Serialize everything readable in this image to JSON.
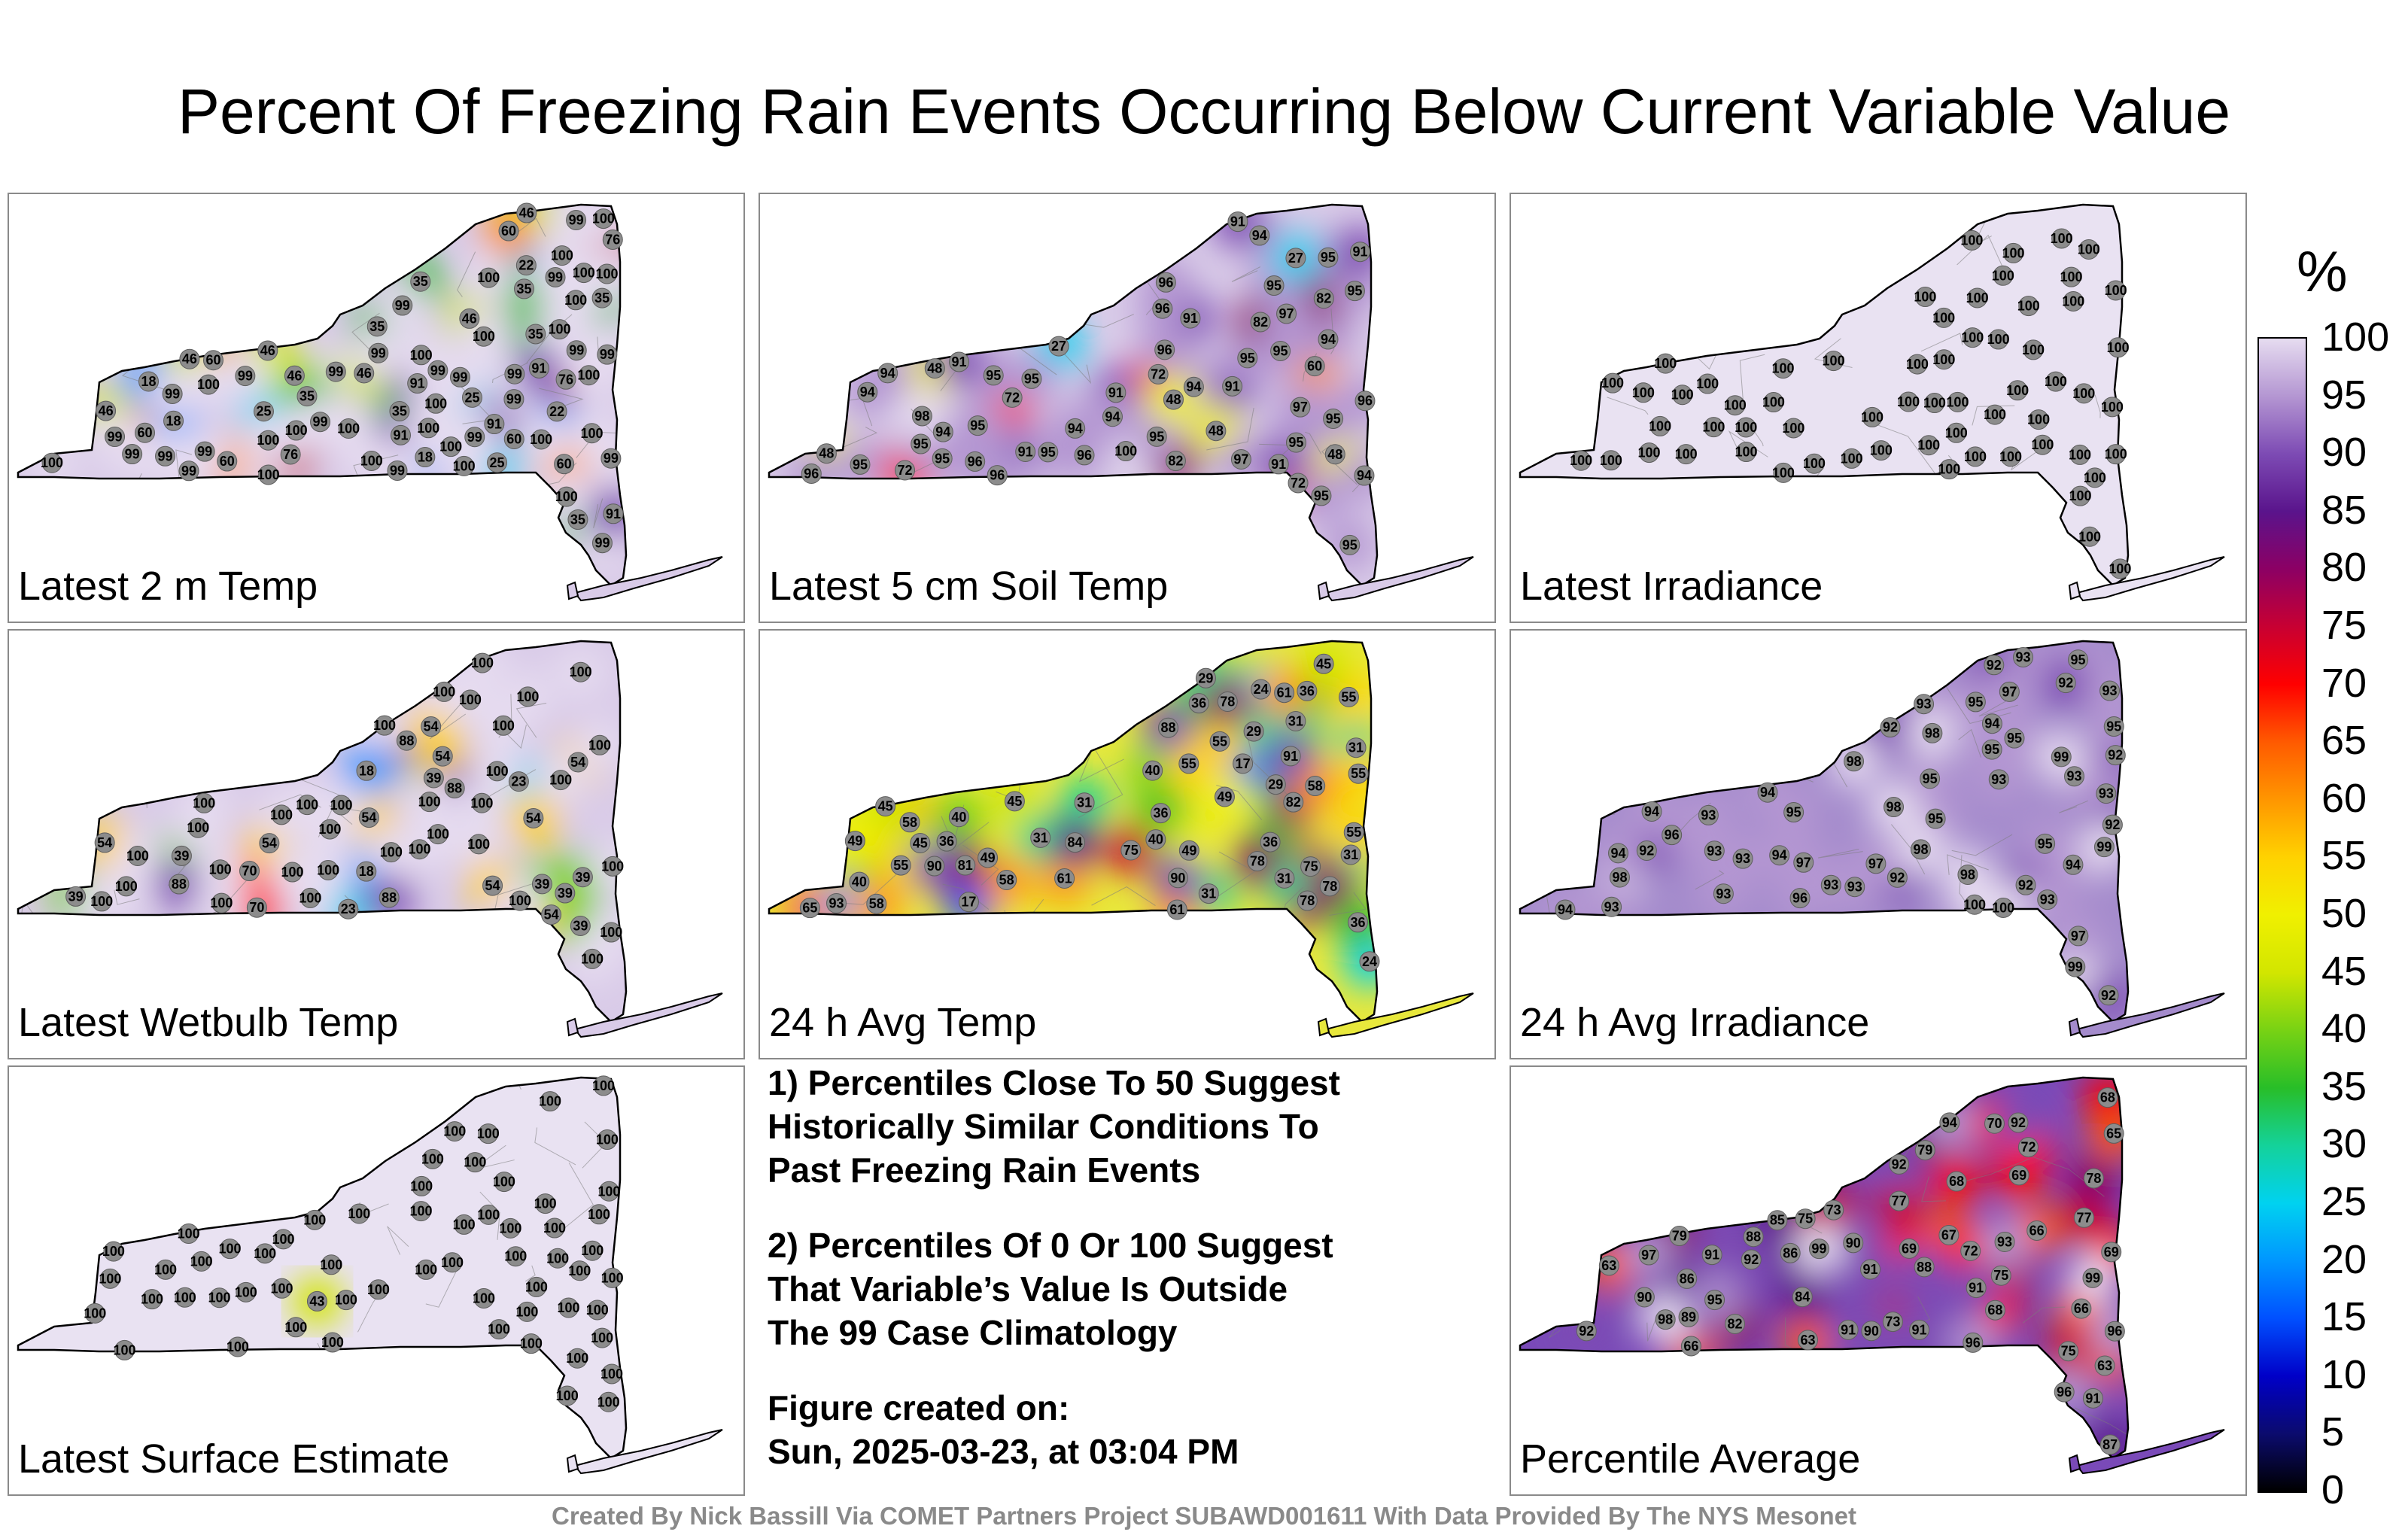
{
  "title": "Percent Of Freezing Rain Events Occurring Below Current Variable Value",
  "footer": "Created By Nick Bassill Via COMET Partners Project SUBAWD001611 With Data Provided By The NYS Mesonet",
  "colorbar": {
    "unit": "%",
    "ticks": [
      "100",
      "95",
      "90",
      "85",
      "80",
      "75",
      "70",
      "65",
      "60",
      "55",
      "50",
      "45",
      "40",
      "35",
      "30",
      "25",
      "20",
      "15",
      "10",
      "5",
      "0"
    ],
    "colors": [
      "#000000",
      "#0b0b6e",
      "#0000c8",
      "#0050ff",
      "#0096ff",
      "#00d2f0",
      "#14d29a",
      "#28be28",
      "#78d214",
      "#d2e600",
      "#f0f000",
      "#ffd200",
      "#ff9600",
      "#ff5a00",
      "#ff0000",
      "#c80032",
      "#8c0064",
      "#5a148c",
      "#7d4bb4",
      "#b496d2",
      "#e6dcf0"
    ]
  },
  "panels": [
    {
      "label": "Latest 2 m Temp",
      "mode": "mixed",
      "stations": [
        "35",
        "18",
        "22",
        "60",
        "60",
        "25",
        "46",
        "35",
        "46",
        "18",
        "35",
        "60",
        "22",
        "35",
        "35",
        "60",
        "25",
        "35",
        "46",
        "99",
        "46",
        "60",
        "18",
        "35",
        "99",
        "100",
        "46",
        "25",
        "35",
        "99",
        "100",
        "100",
        "76",
        "99",
        "99",
        "91",
        "46",
        "99",
        "100",
        "100",
        "99",
        "99",
        "91",
        "99",
        "91",
        "99",
        "100",
        "99",
        "76",
        "60",
        "46",
        "100",
        "100",
        "99",
        "99",
        "76",
        "91",
        "99",
        "99",
        "100",
        "100",
        "99",
        "99",
        "100",
        "100",
        "99",
        "100",
        "99",
        "99",
        "91",
        "99",
        "100",
        "100",
        "100",
        "99",
        "100",
        "100",
        "99",
        "100",
        "100",
        "100",
        "100",
        "100",
        "100"
      ]
    },
    {
      "label": "Latest 5 cm Soil Temp",
      "mode": "mixed",
      "stations": [
        "82",
        "95",
        "91",
        "91",
        "94",
        "100",
        "48",
        "72",
        "48",
        "94",
        "72",
        "60",
        "27",
        "48",
        "91",
        "48",
        "95",
        "94",
        "72",
        "48",
        "94",
        "95",
        "95",
        "95",
        "95",
        "94",
        "95",
        "94",
        "96",
        "91",
        "82",
        "94",
        "95",
        "96",
        "94",
        "95",
        "27",
        "91",
        "95",
        "96",
        "94",
        "72",
        "91",
        "95",
        "95",
        "96",
        "91",
        "95",
        "82",
        "96",
        "95",
        "97",
        "91",
        "95",
        "96",
        "95",
        "97",
        "97",
        "96",
        "98",
        "96",
        "95"
      ]
    },
    {
      "label": "Latest Irradiance",
      "mode": "all100",
      "stations": [
        "100",
        "100",
        "100",
        "100",
        "100",
        "100",
        "100",
        "100",
        "100",
        "100",
        "100",
        "100",
        "100",
        "100",
        "100",
        "100",
        "100",
        "100",
        "100",
        "100",
        "100",
        "100",
        "100",
        "100",
        "100",
        "100",
        "100",
        "100",
        "100",
        "100",
        "100",
        "100",
        "100",
        "100",
        "100",
        "100",
        "100",
        "100",
        "100",
        "100",
        "100",
        "100",
        "100",
        "100",
        "100",
        "100",
        "100",
        "100",
        "100",
        "100",
        "100",
        "100",
        "100",
        "100",
        "100",
        "100",
        "100",
        "100",
        "100",
        "100",
        "100",
        "100"
      ]
    },
    {
      "label": "Latest Wetbulb Temp",
      "mode": "mixed",
      "stations": [
        "39",
        "18",
        "23",
        "54",
        "39",
        "54",
        "39",
        "54",
        "23",
        "70",
        "39",
        "54",
        "39",
        "88",
        "54",
        "39",
        "100",
        "54",
        "39",
        "18",
        "100",
        "54",
        "88",
        "100",
        "100",
        "70",
        "88",
        "54",
        "100",
        "100",
        "100",
        "54",
        "100",
        "100",
        "100",
        "88",
        "100",
        "100",
        "100",
        "100",
        "100",
        "100",
        "100",
        "100",
        "100",
        "100",
        "100",
        "100",
        "100",
        "100",
        "100",
        "100",
        "100",
        "100",
        "100",
        "100",
        "100",
        "100",
        "100",
        "100"
      ]
    },
    {
      "label": "24 h Avg Temp",
      "mode": "warm",
      "stations": [
        "31",
        "29",
        "31",
        "55",
        "36",
        "17",
        "17",
        "61",
        "24",
        "31",
        "40",
        "31",
        "36",
        "29",
        "58",
        "40",
        "45",
        "36",
        "24",
        "29",
        "75",
        "55",
        "49",
        "40",
        "31",
        "36",
        "82",
        "58",
        "45",
        "31",
        "55",
        "49",
        "58",
        "78",
        "49",
        "40",
        "45",
        "36",
        "55",
        "61",
        "78",
        "31",
        "49",
        "55",
        "58",
        "81",
        "75",
        "36",
        "45",
        "61",
        "78",
        "55",
        "65",
        "88",
        "90",
        "78",
        "84",
        "90",
        "91",
        "93"
      ]
    },
    {
      "label": "24 h Avg Irradiance",
      "mode": "purple",
      "stations": [
        "93",
        "92",
        "97",
        "94",
        "95",
        "93",
        "95",
        "93",
        "94",
        "95",
        "92",
        "95",
        "93",
        "95",
        "92",
        "94",
        "95",
        "92",
        "96",
        "93",
        "93",
        "95",
        "94",
        "92",
        "98",
        "92",
        "93",
        "93",
        "94",
        "95",
        "97",
        "93",
        "98",
        "93",
        "92",
        "93",
        "92",
        "98",
        "92",
        "99",
        "93",
        "94",
        "97",
        "98",
        "95",
        "94",
        "93",
        "96",
        "98",
        "99",
        "98",
        "93",
        "97",
        "99",
        "100",
        "100"
      ]
    },
    {
      "label": "Latest Surface Estimate",
      "mode": "all100",
      "stations": [
        "100",
        "100",
        "100",
        "100",
        "100",
        "100",
        "100",
        "100",
        "100",
        "100",
        "100",
        "100",
        "100",
        "100",
        "100",
        "100",
        "100",
        "100",
        "100",
        "100",
        "100",
        "100",
        "100",
        "100",
        "100",
        "100",
        "100",
        "100",
        "100",
        "100",
        "100",
        "100",
        "100",
        "100",
        "100",
        "100",
        "100",
        "100",
        "100",
        "100",
        "100",
        "100",
        "100",
        "100",
        "100",
        "100",
        "100",
        "100",
        "100",
        "100",
        "100",
        "43",
        "100",
        "100",
        "100",
        "100",
        "100",
        "100",
        "100",
        "100"
      ]
    },
    {
      "label": "Percentile Average",
      "mode": "average",
      "stations": [
        "69",
        "65",
        "66",
        "79",
        "70",
        "72",
        "77",
        "67",
        "69",
        "68",
        "69",
        "72",
        "75",
        "63",
        "63",
        "78",
        "66",
        "73",
        "63",
        "66",
        "82",
        "86",
        "77",
        "75",
        "73",
        "91",
        "68",
        "68",
        "86",
        "92",
        "91",
        "79",
        "84",
        "92",
        "87",
        "90",
        "91",
        "75",
        "91",
        "95",
        "96",
        "88",
        "88",
        "91",
        "92",
        "90",
        "97",
        "93",
        "89",
        "91",
        "85",
        "90",
        "92",
        "96",
        "94",
        "96",
        "98",
        "99",
        "99"
      ]
    }
  ],
  "notes": [
    "1) Percentiles Close To 50 Suggest\nHistorically Similar Conditions To\nPast Freezing Rain Events",
    "2) Percentiles Of 0 Or 100 Suggest\nThat Variable’s Value Is Outside\nThe 99 Case Climatology",
    "Figure created on:\nSun, 2025-03-23, at 03:04 PM"
  ]
}
